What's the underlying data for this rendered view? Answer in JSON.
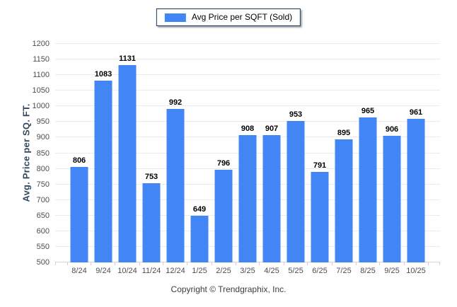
{
  "legend": {
    "label": "Avg Price per SQFT (Sold)",
    "swatch_color": "#4285F4"
  },
  "chart_data": {
    "type": "bar",
    "title": "",
    "series_name": "Avg Price per SQFT (Sold)",
    "categories": [
      "8/24",
      "9/24",
      "10/24",
      "11/24",
      "12/24",
      "1/25",
      "2/25",
      "3/25",
      "4/25",
      "5/25",
      "6/25",
      "7/25",
      "8/25",
      "9/25",
      "10/25"
    ],
    "values": [
      806,
      1083,
      1131,
      753,
      992,
      649,
      796,
      908,
      907,
      953,
      791,
      895,
      965,
      906,
      961
    ],
    "xlabel": "",
    "ylabel": "Avg. Price per SQ. FT.",
    "ylim": [
      500,
      1200
    ],
    "ytick_step": 50,
    "grid": "horizontal-only",
    "legend_position": "top-center",
    "value_labels": "above-bars",
    "bar_color": "#4285F4"
  },
  "footer": {
    "text": "Copyright © Trendgraphix, Inc."
  },
  "colors": {
    "bar": "#4285F4",
    "legend_border": "#17375E",
    "gridline": "#ebebeb",
    "axis_line": "#d6d6d6",
    "tick_mark": "#cfcfcf",
    "tick_label": "#4d4d4d",
    "value_label": "#000000",
    "axis_title": "#33485C",
    "footer_text": "#3d3d3d"
  }
}
